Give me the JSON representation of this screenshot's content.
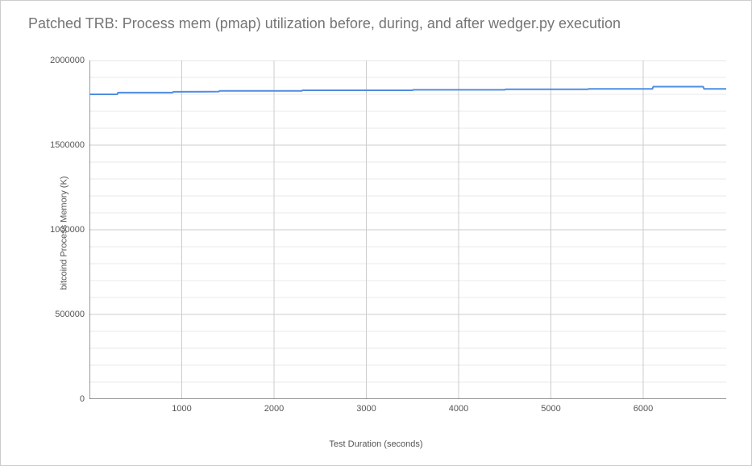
{
  "chart": {
    "type": "line",
    "title": "Patched TRB: Process mem (pmap) utilization before, during, and after wedger.py execution",
    "title_fontsize": 18,
    "title_color": "#757575",
    "xlabel": "Test Duration (seconds)",
    "ylabel": "bitcoind Process Memory (K)",
    "label_fontsize": 11,
    "label_color": "#555555",
    "background_color": "#ffffff",
    "border_color": "#cccccc",
    "grid_major_color": "#cccccc",
    "grid_minor_color": "#e9e9e9",
    "axis_color": "#333333",
    "line_color": "#4f8de0",
    "line_width": 2,
    "xlim": [
      0,
      6900
    ],
    "ylim": [
      0,
      2000000
    ],
    "xticks": [
      1000,
      2000,
      3000,
      4000,
      5000,
      6000
    ],
    "yticks_major": [
      0,
      500000,
      1000000,
      1500000,
      2000000
    ],
    "yticks_minor": [
      100000,
      200000,
      300000,
      400000,
      600000,
      700000,
      800000,
      900000,
      1100000,
      1200000,
      1300000,
      1400000,
      1600000,
      1700000,
      1800000,
      1900000
    ],
    "series": {
      "x": [
        0,
        300,
        310,
        900,
        910,
        1400,
        1410,
        2300,
        2310,
        3500,
        3510,
        4500,
        4510,
        5400,
        5410,
        6100,
        6110,
        6650,
        6660,
        6900
      ],
      "y": [
        1800000,
        1800000,
        1810000,
        1810000,
        1815000,
        1816000,
        1820000,
        1820000,
        1824000,
        1824000,
        1827000,
        1827000,
        1830000,
        1830000,
        1832000,
        1832000,
        1845000,
        1845000,
        1832000,
        1832000
      ]
    }
  }
}
